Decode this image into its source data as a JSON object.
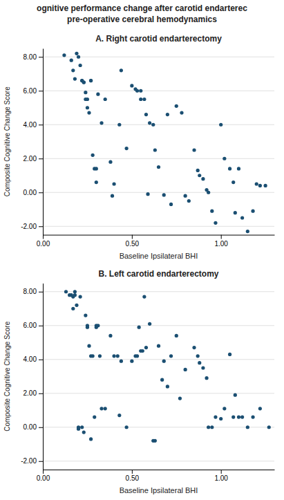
{
  "title": [
    "ognitive performance change after carotid endarterec",
    "pre-operative cerebral hemodynamics"
  ],
  "chart_data": [
    {
      "type": "scatter",
      "title": "A. Right carotid endarterectomy",
      "x_label": "Baseline Ipsilateral BHI",
      "y_label": "Composite Cognitive Change Score",
      "color": "#1B4F72",
      "grid": "y",
      "xlim": [
        0.0,
        1.3
      ],
      "ylim": [
        -2.5,
        8.5
      ],
      "xticks": [
        {
          "value": 0.0,
          "label": "0.00"
        },
        {
          "value": 0.5,
          "label": "0.50"
        },
        {
          "value": 1.0,
          "label": "1.00"
        }
      ],
      "yticks": [
        {
          "value": -2.0,
          "label": "-2.00"
        },
        {
          "value": 0.0,
          "label": "0.00"
        },
        {
          "value": 2.0,
          "label": "2.00"
        },
        {
          "value": 4.0,
          "label": "4.00"
        },
        {
          "value": 6.0,
          "label": "6.00"
        },
        {
          "value": 8.0,
          "label": "8.00"
        }
      ],
      "x": [
        0.12,
        0.16,
        0.17,
        0.18,
        0.19,
        0.2,
        0.21,
        0.22,
        0.22,
        0.23,
        0.23,
        0.24,
        0.24,
        0.25,
        0.25,
        0.26,
        0.27,
        0.27,
        0.28,
        0.29,
        0.3,
        0.3,
        0.31,
        0.33,
        0.35,
        0.38,
        0.39,
        0.4,
        0.43,
        0.44,
        0.47,
        0.5,
        0.52,
        0.53,
        0.55,
        0.55,
        0.57,
        0.58,
        0.59,
        0.6,
        0.62,
        0.63,
        0.65,
        0.68,
        0.7,
        0.72,
        0.75,
        0.78,
        0.8,
        0.82,
        0.85,
        0.87,
        0.88,
        0.9,
        0.92,
        0.93,
        0.95,
        0.97,
        1.0,
        1.02,
        1.05,
        1.07,
        1.08,
        1.1,
        1.12,
        1.15,
        1.18,
        1.2,
        1.22,
        1.25
      ],
      "y": [
        8.1,
        7.8,
        7.2,
        6.7,
        8.2,
        8.0,
        7.5,
        6.6,
        6.6,
        6.5,
        6.5,
        5.9,
        5.5,
        5.5,
        5.0,
        4.7,
        6.6,
        6.6,
        2.2,
        1.4,
        1.4,
        0.6,
        5.8,
        4.1,
        5.5,
        1.8,
        -0.2,
        0.5,
        4.0,
        7.2,
        2.6,
        6.3,
        6.1,
        6.0,
        6.0,
        5.5,
        5.5,
        4.6,
        -0.1,
        4.1,
        4.0,
        2.5,
        1.5,
        -0.15,
        4.6,
        -0.7,
        5.1,
        4.7,
        -0.2,
        -0.5,
        2.5,
        1.3,
        1.0,
        0.8,
        0.15,
        0.0,
        -1.1,
        -1.8,
        4.0,
        2.0,
        1.4,
        0.6,
        -1.2,
        1.4,
        -1.5,
        -2.3,
        -1.1,
        0.5,
        0.4,
        0.4
      ]
    },
    {
      "type": "scatter",
      "title": "B.  Left carotid endarterectomy",
      "x_label": "Baseline Ipsilateral BHI",
      "y_label": "Composite Cognitive Change Score",
      "color": "#1B4F72",
      "grid": "y",
      "xlim": [
        0.0,
        1.3
      ],
      "ylim": [
        -2.5,
        8.5
      ],
      "xticks": [
        {
          "value": 0.0,
          "label": "0.00"
        },
        {
          "value": 0.5,
          "label": "0.50"
        },
        {
          "value": 1.0,
          "label": "1.00"
        }
      ],
      "yticks": [
        {
          "value": -2.0,
          "label": "-2.00"
        },
        {
          "value": 0.0,
          "label": "0.00"
        },
        {
          "value": 2.0,
          "label": "2.00"
        },
        {
          "value": 4.0,
          "label": "4.00"
        },
        {
          "value": 6.0,
          "label": "6.00"
        },
        {
          "value": 8.0,
          "label": "8.00"
        }
      ],
      "x": [
        0.13,
        0.15,
        0.16,
        0.17,
        0.17,
        0.18,
        0.18,
        0.19,
        0.2,
        0.2,
        0.21,
        0.22,
        0.23,
        0.24,
        0.25,
        0.25,
        0.26,
        0.27,
        0.27,
        0.28,
        0.29,
        0.3,
        0.3,
        0.31,
        0.32,
        0.33,
        0.35,
        0.38,
        0.4,
        0.42,
        0.43,
        0.44,
        0.47,
        0.5,
        0.52,
        0.53,
        0.54,
        0.55,
        0.56,
        0.57,
        0.58,
        0.6,
        0.62,
        0.63,
        0.65,
        0.67,
        0.68,
        0.7,
        0.72,
        0.75,
        0.77,
        0.8,
        0.85,
        0.87,
        0.88,
        0.9,
        0.92,
        0.93,
        0.95,
        0.97,
        1.0,
        1.02,
        1.05,
        1.07,
        1.08,
        1.1,
        1.12,
        1.15,
        1.18,
        1.22,
        1.27
      ],
      "y": [
        8.0,
        7.8,
        7.8,
        7.7,
        7.0,
        8.0,
        7.8,
        7.2,
        -0.1,
        0.0,
        7.7,
        0.0,
        -0.3,
        6.6,
        5.9,
        6.0,
        4.8,
        -0.7,
        4.2,
        4.2,
        0.6,
        5.9,
        6.0,
        6.0,
        4.2,
        1.1,
        1.1,
        5.4,
        4.2,
        4.2,
        0.7,
        3.9,
        0.0,
        3.9,
        4.2,
        4.2,
        5.9,
        4.5,
        4.5,
        7.7,
        4.7,
        6.1,
        -0.8,
        -0.8,
        4.8,
        2.8,
        3.9,
        2.4,
        4.2,
        5.4,
        1.7,
        3.4,
        4.7,
        4.2,
        3.8,
        3.5,
        2.9,
        0.0,
        0.0,
        0.6,
        0.5,
        1.1,
        4.3,
        0.6,
        1.9,
        0.6,
        0.6,
        0.0,
        0.6,
        1.1,
        0.0
      ]
    }
  ]
}
